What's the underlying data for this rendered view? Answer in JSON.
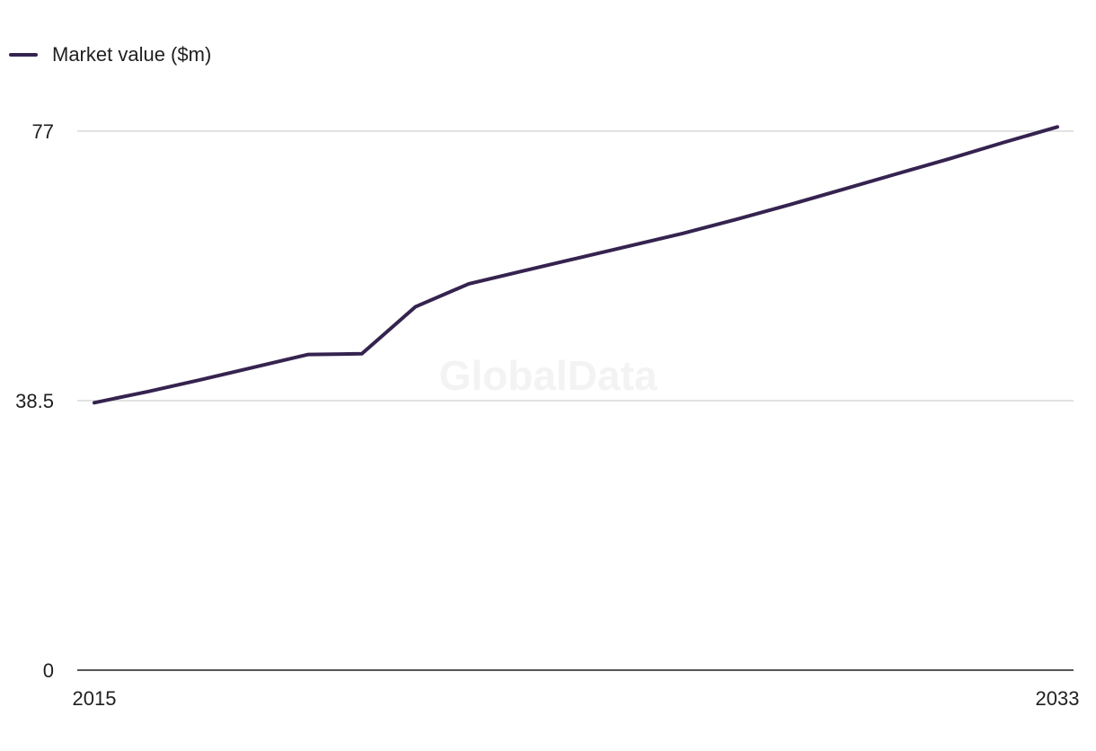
{
  "legend": {
    "label": "Market value ($m)"
  },
  "watermark": "GlobalData",
  "colors": {
    "series": "#35234f",
    "grid": "#d9d9d9",
    "axis": "#1f1f1f"
  },
  "chart_data": {
    "type": "line",
    "title": "",
    "xlabel": "",
    "ylabel": "",
    "xlim": [
      2015,
      2033
    ],
    "ylim": [
      0,
      77
    ],
    "x_ticks": [
      "2015",
      "2033"
    ],
    "y_ticks": [
      "0",
      "38.5",
      "77"
    ],
    "grid": true,
    "legend_position": "top-left",
    "series": [
      {
        "name": "Market value ($m)",
        "x": [
          2015,
          2016,
          2017,
          2018,
          2019,
          2020,
          2021,
          2022,
          2023,
          2024,
          2025,
          2026,
          2027,
          2028,
          2029,
          2030,
          2031,
          2032,
          2033
        ],
        "values": [
          38.2,
          39.8,
          41.5,
          43.3,
          45.1,
          45.2,
          51.9,
          55.2,
          57.0,
          58.8,
          60.6,
          62.4,
          64.4,
          66.5,
          68.7,
          70.9,
          73.1,
          75.4,
          77.6
        ]
      }
    ]
  }
}
